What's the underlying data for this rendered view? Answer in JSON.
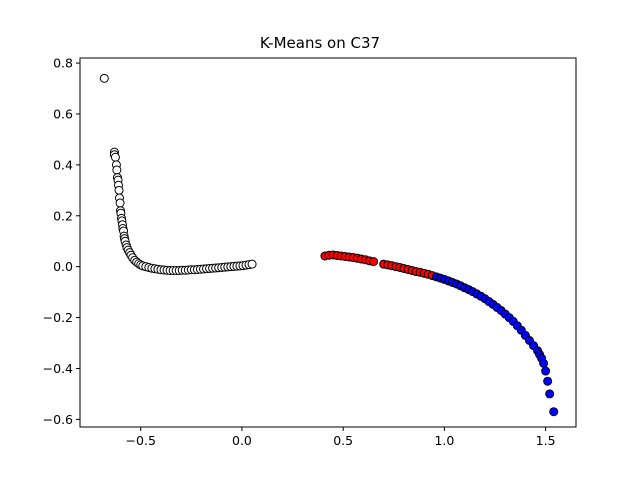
{
  "chart_data": {
    "type": "scatter",
    "title": "K-Means on C37",
    "xlabel": "",
    "ylabel": "",
    "xlim": [
      -0.8,
      1.65
    ],
    "ylim": [
      -0.63,
      0.82
    ],
    "xticks": [
      -0.5,
      0.0,
      0.5,
      1.0,
      1.5
    ],
    "xtick_labels": [
      "−0.5",
      "0.0",
      "0.5",
      "1.0",
      "1.5"
    ],
    "yticks": [
      -0.6,
      -0.4,
      -0.2,
      0.0,
      0.2,
      0.4,
      0.6,
      0.8
    ],
    "ytick_labels": [
      "−0.6",
      "−0.4",
      "−0.2",
      "0.0",
      "0.2",
      "0.4",
      "0.6",
      "0.8"
    ],
    "grid": false,
    "legend": "none",
    "marker_edge_color": "#000000",
    "series": [
      {
        "color": "#ffffff",
        "points": [
          [
            -0.68,
            0.74
          ],
          [
            -0.63,
            0.45
          ],
          [
            -0.63,
            0.44
          ],
          [
            -0.625,
            0.43
          ],
          [
            -0.62,
            0.4
          ],
          [
            -0.618,
            0.38
          ],
          [
            -0.615,
            0.35
          ],
          [
            -0.612,
            0.34
          ],
          [
            -0.61,
            0.32
          ],
          [
            -0.607,
            0.3
          ],
          [
            -0.605,
            0.27
          ],
          [
            -0.602,
            0.25
          ],
          [
            -0.6,
            0.22
          ],
          [
            -0.598,
            0.21
          ],
          [
            -0.595,
            0.19
          ],
          [
            -0.593,
            0.18
          ],
          [
            -0.59,
            0.165
          ],
          [
            -0.588,
            0.15
          ],
          [
            -0.585,
            0.14
          ],
          [
            -0.582,
            0.12
          ],
          [
            -0.58,
            0.11
          ],
          [
            -0.577,
            0.1
          ],
          [
            -0.572,
            0.085
          ],
          [
            -0.568,
            0.075
          ],
          [
            -0.562,
            0.065
          ],
          [
            -0.555,
            0.055
          ],
          [
            -0.548,
            0.045
          ],
          [
            -0.54,
            0.035
          ],
          [
            -0.53,
            0.025
          ],
          [
            -0.52,
            0.018
          ],
          [
            -0.51,
            0.012
          ],
          [
            -0.5,
            0.007
          ],
          [
            -0.49,
            0.003
          ],
          [
            -0.475,
            0.0
          ],
          [
            -0.46,
            -0.003
          ],
          [
            -0.445,
            -0.006
          ],
          [
            -0.43,
            -0.008
          ],
          [
            -0.415,
            -0.01
          ],
          [
            -0.4,
            -0.012
          ],
          [
            -0.385,
            -0.013
          ],
          [
            -0.37,
            -0.014
          ],
          [
            -0.355,
            -0.015
          ],
          [
            -0.34,
            -0.015
          ],
          [
            -0.325,
            -0.015
          ],
          [
            -0.31,
            -0.015
          ],
          [
            -0.295,
            -0.014
          ],
          [
            -0.28,
            -0.014
          ],
          [
            -0.265,
            -0.013
          ],
          [
            -0.25,
            -0.012
          ],
          [
            -0.235,
            -0.012
          ],
          [
            -0.22,
            -0.011
          ],
          [
            -0.205,
            -0.01
          ],
          [
            -0.19,
            -0.009
          ],
          [
            -0.175,
            -0.008
          ],
          [
            -0.16,
            -0.007
          ],
          [
            -0.145,
            -0.006
          ],
          [
            -0.13,
            -0.005
          ],
          [
            -0.115,
            -0.004
          ],
          [
            -0.1,
            -0.003
          ],
          [
            -0.085,
            -0.002
          ],
          [
            -0.07,
            -0.001
          ],
          [
            -0.055,
            0.0
          ],
          [
            -0.04,
            0.001
          ],
          [
            -0.025,
            0.002
          ],
          [
            -0.01,
            0.003
          ],
          [
            0.005,
            0.004
          ],
          [
            0.02,
            0.006
          ],
          [
            0.035,
            0.008
          ],
          [
            0.05,
            0.01
          ]
        ]
      },
      {
        "color": "#ff0000",
        "points": [
          [
            0.41,
            0.042
          ],
          [
            0.43,
            0.045
          ],
          [
            0.45,
            0.046
          ],
          [
            0.47,
            0.044
          ],
          [
            0.49,
            0.042
          ],
          [
            0.51,
            0.04
          ],
          [
            0.53,
            0.038
          ],
          [
            0.55,
            0.036
          ],
          [
            0.57,
            0.033
          ],
          [
            0.59,
            0.03
          ],
          [
            0.61,
            0.027
          ],
          [
            0.63,
            0.023
          ],
          [
            0.65,
            0.02
          ],
          [
            0.7,
            0.01
          ],
          [
            0.72,
            0.007
          ],
          [
            0.74,
            0.004
          ],
          [
            0.76,
            0.0
          ],
          [
            0.78,
            -0.003
          ],
          [
            0.8,
            -0.007
          ],
          [
            0.82,
            -0.011
          ],
          [
            0.84,
            -0.015
          ],
          [
            0.86,
            -0.019
          ],
          [
            0.88,
            -0.022
          ],
          [
            0.9,
            -0.026
          ],
          [
            0.92,
            -0.03
          ],
          [
            0.94,
            -0.035
          ]
        ]
      },
      {
        "color": "#0000ff",
        "points": [
          [
            0.96,
            -0.04
          ],
          [
            0.98,
            -0.045
          ],
          [
            1.0,
            -0.05
          ],
          [
            1.02,
            -0.056
          ],
          [
            1.04,
            -0.062
          ],
          [
            1.06,
            -0.068
          ],
          [
            1.08,
            -0.075
          ],
          [
            1.1,
            -0.083
          ],
          [
            1.12,
            -0.09
          ],
          [
            1.14,
            -0.098
          ],
          [
            1.16,
            -0.107
          ],
          [
            1.18,
            -0.116
          ],
          [
            1.2,
            -0.126
          ],
          [
            1.22,
            -0.137
          ],
          [
            1.24,
            -0.148
          ],
          [
            1.26,
            -0.16
          ],
          [
            1.28,
            -0.172
          ],
          [
            1.3,
            -0.186
          ],
          [
            1.32,
            -0.2
          ],
          [
            1.34,
            -0.215
          ],
          [
            1.36,
            -0.232
          ],
          [
            1.38,
            -0.25
          ],
          [
            1.4,
            -0.27
          ],
          [
            1.42,
            -0.29
          ],
          [
            1.44,
            -0.31
          ],
          [
            1.46,
            -0.33
          ],
          [
            1.47,
            -0.345
          ],
          [
            1.48,
            -0.36
          ],
          [
            1.49,
            -0.38
          ],
          [
            1.5,
            -0.41
          ],
          [
            1.51,
            -0.45
          ],
          [
            1.52,
            -0.5
          ],
          [
            1.54,
            -0.57
          ]
        ]
      }
    ]
  }
}
